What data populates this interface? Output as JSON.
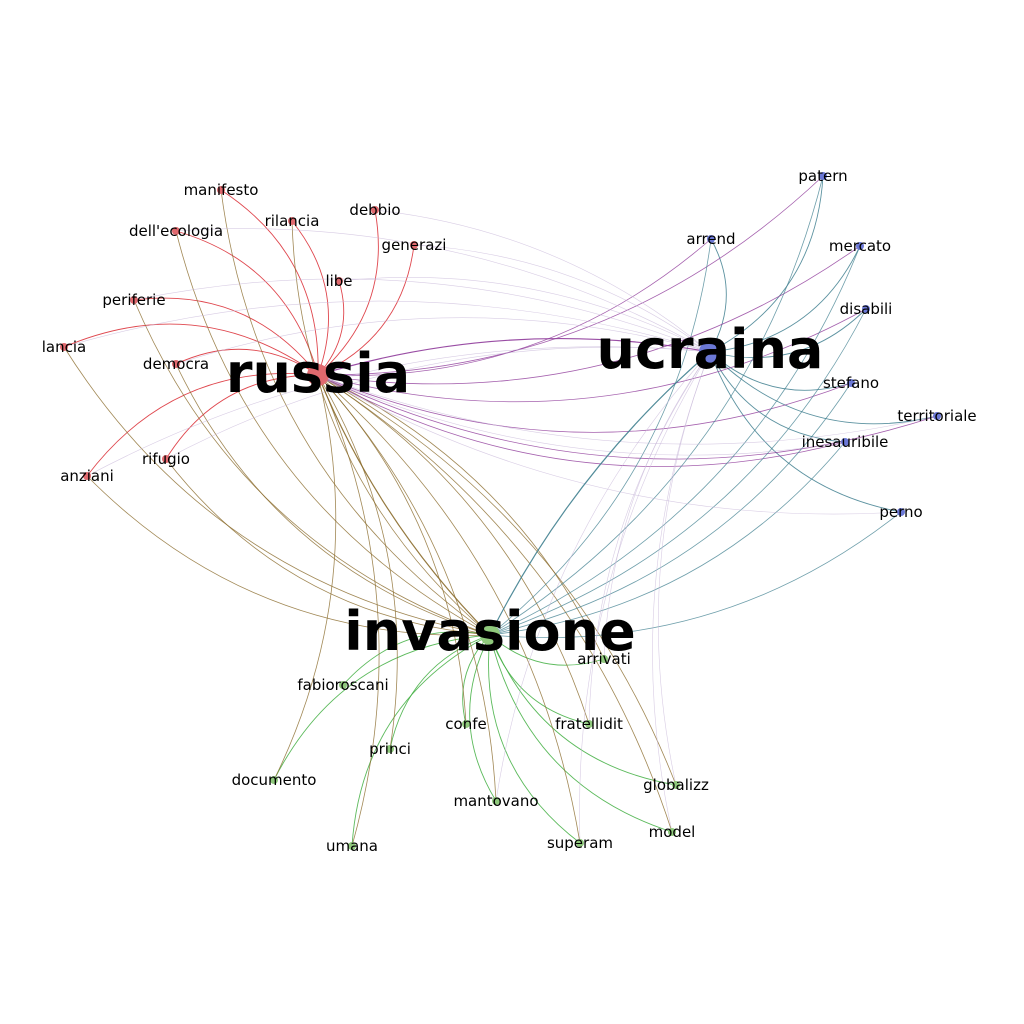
{
  "colors": {
    "russia": "#e0696e",
    "ucraina": "#6b78d6",
    "invasione": "#8fc97c",
    "edge_russia": "#d9272f",
    "edge_ucraina": "#3f7f8f",
    "edge_invasione": "#3fae3f",
    "edge_russia_invasione": "#8a6a2a",
    "edge_russia_ucraina": "#8e3a9a",
    "edge_faint": "#c8b7d8"
  },
  "hubs": [
    {
      "id": "russia",
      "label": "russia",
      "color": "#e0696e"
    },
    {
      "id": "ucraina",
      "label": "ucraina",
      "color": "#6b78d6"
    },
    {
      "id": "invasione",
      "label": "invasione",
      "color": "#8fc97c"
    }
  ],
  "nodes": [
    {
      "id": "manifesto",
      "label": "manifesto",
      "group": "russia"
    },
    {
      "id": "dellecologia",
      "label": "dell'ecologia",
      "group": "russia"
    },
    {
      "id": "rilancia",
      "label": "rilancia",
      "group": "russia"
    },
    {
      "id": "debbio",
      "label": "debbio",
      "group": "russia"
    },
    {
      "id": "generazi",
      "label": "generazi",
      "group": "russia"
    },
    {
      "id": "libe",
      "label": "libe",
      "group": "russia"
    },
    {
      "id": "periferie",
      "label": "periferie",
      "group": "russia"
    },
    {
      "id": "lancia",
      "label": "lancia",
      "group": "russia"
    },
    {
      "id": "democra",
      "label": "democra",
      "group": "russia"
    },
    {
      "id": "rifugio",
      "label": "rifugio",
      "group": "russia"
    },
    {
      "id": "anziani",
      "label": "anziani",
      "group": "russia"
    },
    {
      "id": "patern",
      "label": "patern",
      "group": "ucraina"
    },
    {
      "id": "arrend",
      "label": "arrend",
      "group": "ucraina"
    },
    {
      "id": "mercato",
      "label": "mercato",
      "group": "ucraina"
    },
    {
      "id": "disabili",
      "label": "disabili",
      "group": "ucraina"
    },
    {
      "id": "stefano",
      "label": "stefano",
      "group": "ucraina"
    },
    {
      "id": "territoriale",
      "label": "territoriale",
      "group": "ucraina"
    },
    {
      "id": "inesauribile",
      "label": "inesauribile",
      "group": "ucraina"
    },
    {
      "id": "perno",
      "label": "perno",
      "group": "ucraina"
    },
    {
      "id": "arrivati",
      "label": "arrivati",
      "group": "invasione"
    },
    {
      "id": "fabioroscani",
      "label": "fabioroscani",
      "group": "invasione"
    },
    {
      "id": "confe",
      "label": "confe",
      "group": "invasione"
    },
    {
      "id": "fratellidit",
      "label": "fratellidit",
      "group": "invasione"
    },
    {
      "id": "princi",
      "label": "princi",
      "group": "invasione"
    },
    {
      "id": "documento",
      "label": "documento",
      "group": "invasione"
    },
    {
      "id": "globalizz",
      "label": "globalizz",
      "group": "invasione"
    },
    {
      "id": "mantovano",
      "label": "mantovano",
      "group": "invasione"
    },
    {
      "id": "model",
      "label": "model",
      "group": "invasione"
    },
    {
      "id": "superam",
      "label": "superam",
      "group": "invasione"
    },
    {
      "id": "umana",
      "label": "umana",
      "group": "invasione"
    }
  ]
}
